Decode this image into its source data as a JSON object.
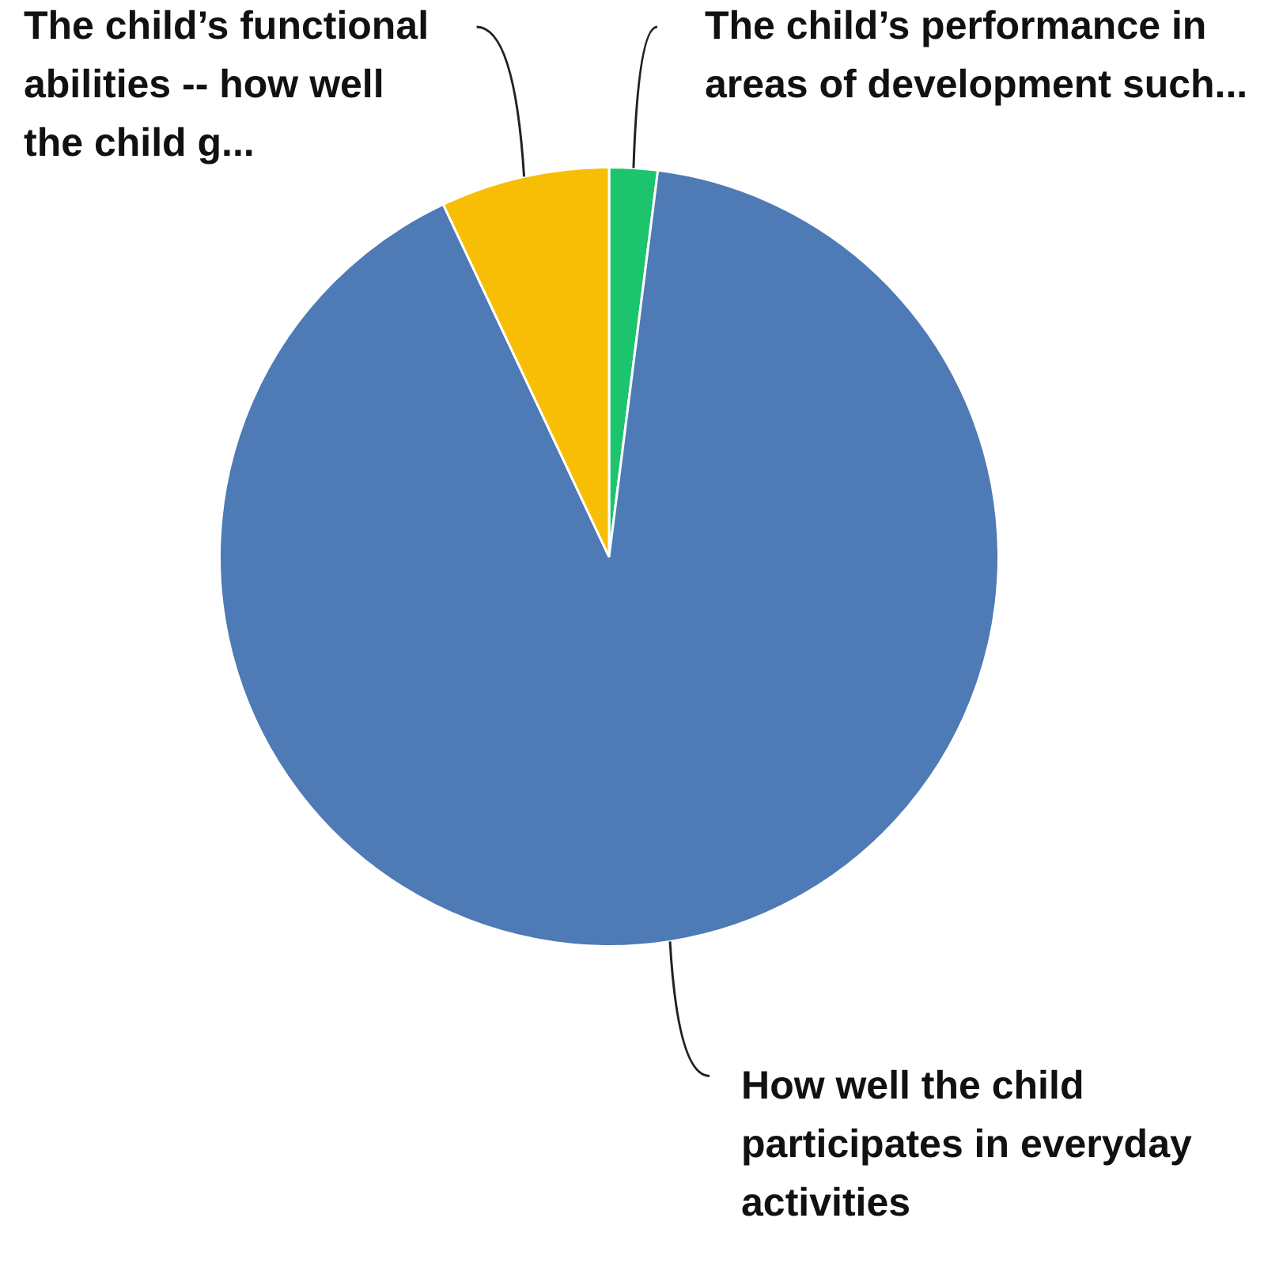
{
  "chart_data": {
    "type": "pie",
    "categories": [
      "The child’s performance in areas of development such...",
      "How well the child participates in everyday activities",
      "The child’s functional abilities -- how well the child g..."
    ],
    "values": [
      2,
      91,
      7
    ],
    "colors": [
      "#1dc46e",
      "#4e7ab5",
      "#f8be06"
    ],
    "legend": false
  }
}
